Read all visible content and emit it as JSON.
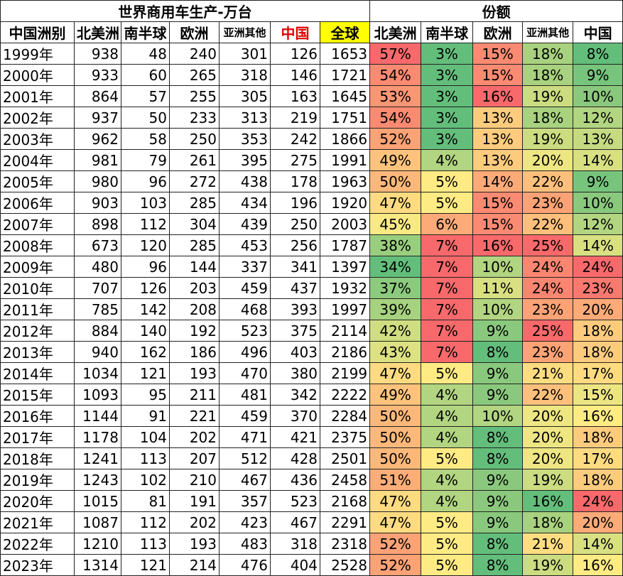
{
  "table": {
    "title_left": "世界商用车生产-万台",
    "title_right": "份额",
    "columns": [
      "中国洲别",
      "北美洲",
      "南半球",
      "欧洲",
      "亚洲其他",
      "中国",
      "全球",
      "北美洲",
      "南半球",
      "欧洲",
      "亚洲其他",
      "中国"
    ],
    "rows": [
      [
        "1999年",
        "938",
        "48",
        "240",
        "301",
        "126",
        "1653",
        "57%",
        "3%",
        "15%",
        "18%",
        "8%"
      ],
      [
        "2000年",
        "933",
        "60",
        "265",
        "318",
        "146",
        "1721",
        "54%",
        "3%",
        "15%",
        "18%",
        "9%"
      ],
      [
        "2001年",
        "864",
        "57",
        "255",
        "305",
        "163",
        "1645",
        "53%",
        "3%",
        "16%",
        "19%",
        "10%"
      ],
      [
        "2002年",
        "937",
        "50",
        "233",
        "313",
        "219",
        "1751",
        "54%",
        "3%",
        "13%",
        "18%",
        "12%"
      ],
      [
        "2003年",
        "962",
        "58",
        "250",
        "353",
        "242",
        "1866",
        "52%",
        "3%",
        "13%",
        "19%",
        "13%"
      ],
      [
        "2004年",
        "981",
        "79",
        "261",
        "395",
        "275",
        "1991",
        "49%",
        "4%",
        "13%",
        "20%",
        "14%"
      ],
      [
        "2005年",
        "980",
        "96",
        "272",
        "438",
        "178",
        "1963",
        "50%",
        "5%",
        "14%",
        "22%",
        "9%"
      ],
      [
        "2006年",
        "903",
        "103",
        "285",
        "434",
        "196",
        "1920",
        "47%",
        "5%",
        "15%",
        "23%",
        "10%"
      ],
      [
        "2007年",
        "898",
        "112",
        "304",
        "439",
        "250",
        "2003",
        "45%",
        "6%",
        "15%",
        "22%",
        "12%"
      ],
      [
        "2008年",
        "673",
        "120",
        "285",
        "453",
        "256",
        "1787",
        "38%",
        "7%",
        "16%",
        "25%",
        "14%"
      ],
      [
        "2009年",
        "480",
        "96",
        "144",
        "337",
        "341",
        "1397",
        "34%",
        "7%",
        "10%",
        "24%",
        "24%"
      ],
      [
        "2010年",
        "707",
        "126",
        "203",
        "459",
        "437",
        "1932",
        "37%",
        "7%",
        "11%",
        "24%",
        "23%"
      ],
      [
        "2011年",
        "785",
        "142",
        "208",
        "468",
        "393",
        "1997",
        "39%",
        "7%",
        "10%",
        "23%",
        "20%"
      ],
      [
        "2012年",
        "884",
        "140",
        "192",
        "523",
        "375",
        "2114",
        "42%",
        "7%",
        "9%",
        "25%",
        "18%"
      ],
      [
        "2013年",
        "940",
        "162",
        "186",
        "496",
        "403",
        "2186",
        "43%",
        "7%",
        "8%",
        "23%",
        "18%"
      ],
      [
        "2014年",
        "1034",
        "121",
        "193",
        "470",
        "380",
        "2199",
        "47%",
        "5%",
        "9%",
        "21%",
        "17%"
      ],
      [
        "2015年",
        "1093",
        "95",
        "211",
        "481",
        "342",
        "2222",
        "49%",
        "4%",
        "9%",
        "22%",
        "15%"
      ],
      [
        "2016年",
        "1144",
        "91",
        "221",
        "459",
        "370",
        "2284",
        "50%",
        "4%",
        "10%",
        "20%",
        "16%"
      ],
      [
        "2017年",
        "1178",
        "104",
        "202",
        "471",
        "421",
        "2375",
        "50%",
        "4%",
        "8%",
        "20%",
        "18%"
      ],
      [
        "2018年",
        "1241",
        "113",
        "207",
        "512",
        "428",
        "2501",
        "50%",
        "5%",
        "8%",
        "20%",
        "17%"
      ],
      [
        "2019年",
        "1243",
        "102",
        "210",
        "467",
        "436",
        "2458",
        "51%",
        "4%",
        "9%",
        "19%",
        "18%"
      ],
      [
        "2020年",
        "1015",
        "81",
        "191",
        "357",
        "523",
        "2168",
        "47%",
        "4%",
        "9%",
        "16%",
        "24%"
      ],
      [
        "2021年",
        "1087",
        "112",
        "202",
        "423",
        "467",
        "2291",
        "47%",
        "5%",
        "9%",
        "18%",
        "20%"
      ],
      [
        "2022年",
        "1210",
        "113",
        "193",
        "483",
        "318",
        "2318",
        "52%",
        "5%",
        "8%",
        "21%",
        "14%"
      ],
      [
        "2023年",
        "1314",
        "121",
        "214",
        "476",
        "404",
        "2528",
        "52%",
        "5%",
        "8%",
        "19%",
        "16%"
      ]
    ]
  }
}
